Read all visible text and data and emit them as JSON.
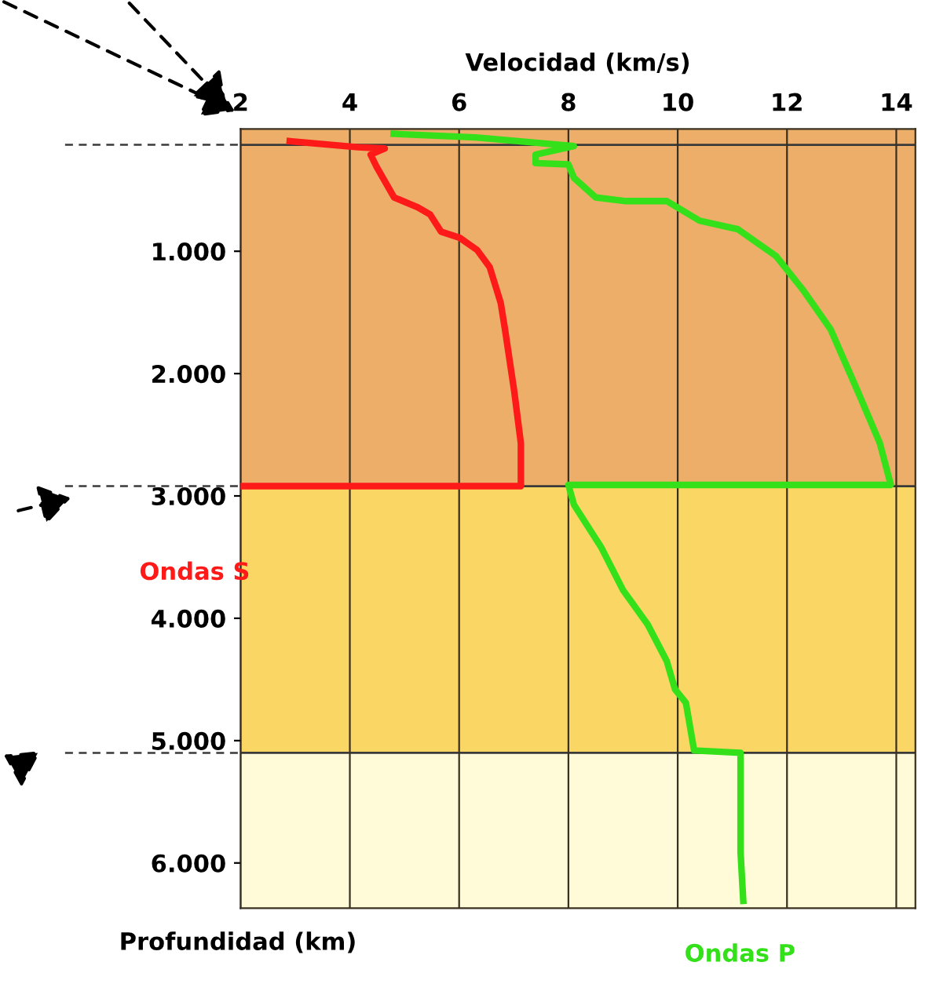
{
  "chart_data": {
    "type": "line",
    "xlabel": "Velocidad (km/s)",
    "ylabel": "Profundidad (km)",
    "xlim": [
      2,
      14.35
    ],
    "xticks": [
      2,
      4,
      6,
      8,
      10,
      12,
      14
    ],
    "ylim": [
      6370,
      0
    ],
    "yticks": [
      {
        "value": 1000,
        "label": "1.000"
      },
      {
        "value": 2000,
        "label": "2.000"
      },
      {
        "value": 3000,
        "label": "3.000"
      },
      {
        "value": 4000,
        "label": "4.000"
      },
      {
        "value": 5000,
        "label": "5.000"
      },
      {
        "value": 6000,
        "label": "6.000"
      }
    ],
    "grid": "x",
    "legend": false,
    "marker": "none",
    "line_style": "solid",
    "series": [
      {
        "name": "Ondas S",
        "color": "#ff1a1a",
        "x": [
          2.9,
          4.15,
          4.64,
          4.38,
          4.49,
          4.81,
          5.24,
          5.47,
          5.67,
          6.01,
          6.33,
          6.56,
          6.76,
          6.84,
          7.01,
          7.13,
          7.13,
          2.0
        ],
        "values": [
          100,
          150,
          160,
          210,
          310,
          560,
          640,
          700,
          840,
          890,
          990,
          1130,
          1420,
          1640,
          2150,
          2570,
          2920,
          2920
        ]
      },
      {
        "name": "Ondas P",
        "color": "#33e01a",
        "x": [
          4.8,
          6.3,
          8.1,
          7.4,
          7.4,
          8.0,
          8.1,
          8.5,
          9.05,
          9.8,
          10.4,
          11.1,
          11.8,
          12.3,
          12.8,
          13.3,
          13.7,
          13.9,
          8.0,
          8.1,
          8.6,
          9.0,
          9.45,
          9.8,
          9.95,
          10.15,
          10.3,
          11.15,
          11.15,
          11.2
        ],
        "values": [
          40,
          70,
          140,
          210,
          280,
          290,
          400,
          560,
          590,
          590,
          750,
          820,
          1040,
          1320,
          1640,
          2150,
          2570,
          2910,
          2910,
          3070,
          3420,
          3770,
          4050,
          4350,
          4580,
          4690,
          5080,
          5100,
          5910,
          6310
        ]
      }
    ],
    "ref_lines": [
      {
        "axis": "y",
        "value": 130,
        "color": "#3a3a3a"
      },
      {
        "axis": "y",
        "value": 2920,
        "color": "#3a3a3a"
      },
      {
        "axis": "y",
        "value": 5100,
        "color": "#3a3a3a"
      }
    ],
    "bands": [
      {
        "axis": "y",
        "from": 0,
        "to": 2920,
        "color": "#ecae68"
      },
      {
        "axis": "y",
        "from": 2920,
        "to": 5100,
        "color": "#fad765"
      },
      {
        "axis": "y",
        "from": 5100,
        "to": 6370,
        "color": "#fffbd8"
      }
    ]
  }
}
